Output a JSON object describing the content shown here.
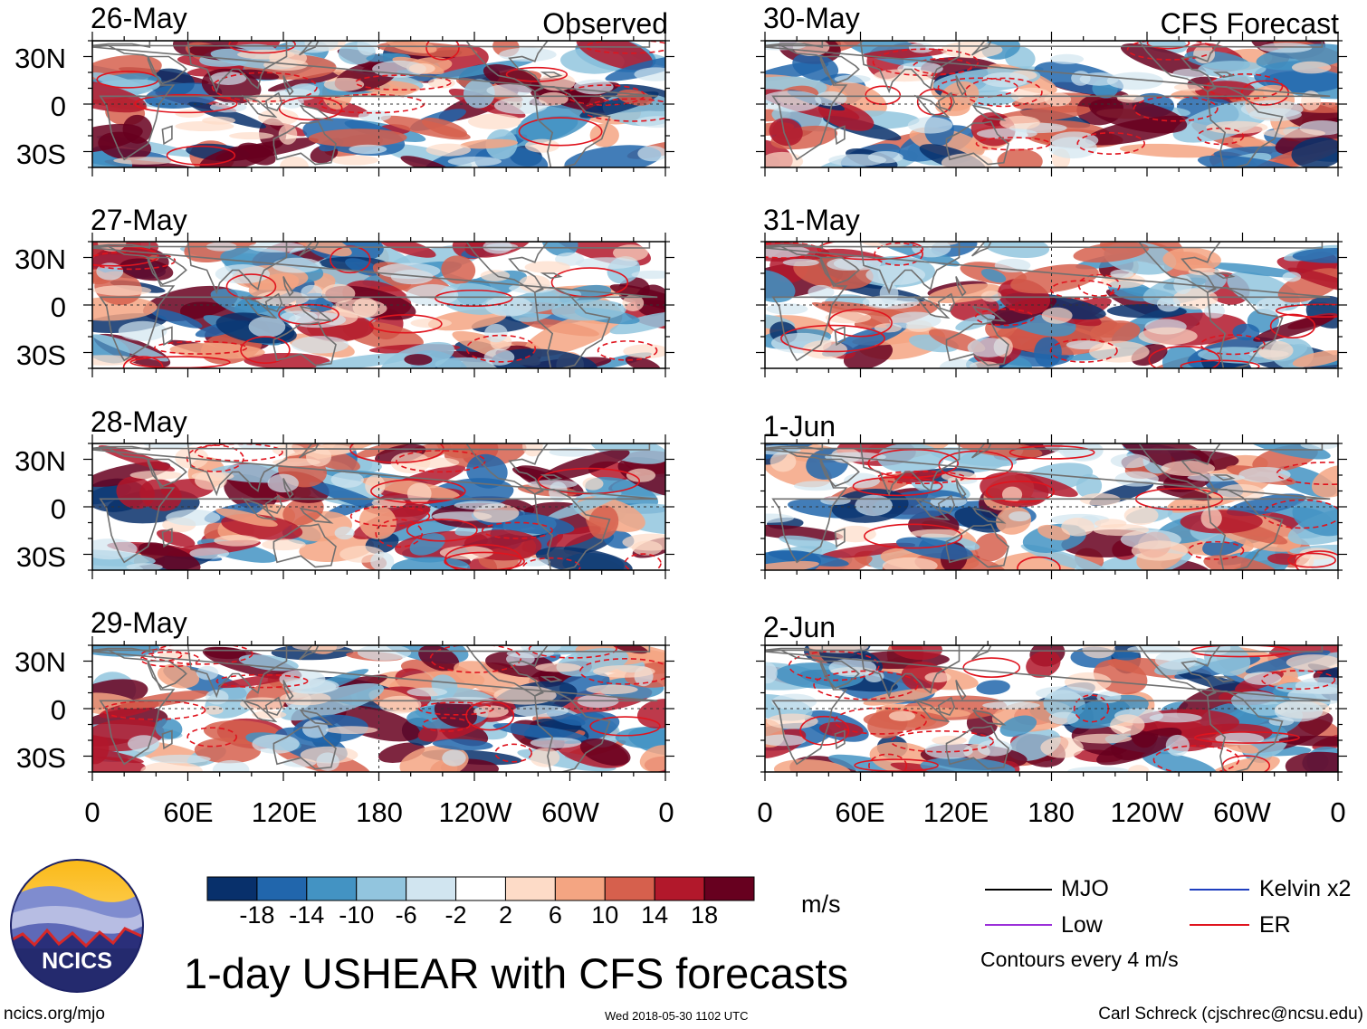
{
  "figure": {
    "title": "1-day USHEAR with CFS forecasts",
    "left_corner_label": "Observed",
    "right_corner_label": "CFS Forecast",
    "units": "m/s",
    "contour_note": "Contours every 4 m/s",
    "footer_left": "ncics.org/mjo",
    "footer_center": "Wed 2018-05-30 1102 UTC",
    "footer_right": "Carl Schreck (cjschrec@ncsu.edu)",
    "logo_text": "NCICS"
  },
  "chart_data": {
    "type": "heatmap",
    "variable": "1-day USHEAR anomaly",
    "units": "m/s",
    "lat_ticks": [
      "30N",
      "0",
      "30S"
    ],
    "lon_ticks": [
      "0",
      "60E",
      "120E",
      "180",
      "120W",
      "60W",
      "0"
    ],
    "lat_range": [
      -40,
      40
    ],
    "lon_range": [
      0,
      360
    ],
    "colorbar": {
      "levels": [
        "-18",
        "-14",
        "-10",
        "-6",
        "-2",
        "2",
        "6",
        "10",
        "14",
        "18"
      ],
      "colors": [
        "#08306b",
        "#2166ac",
        "#4393c3",
        "#92c5de",
        "#d1e5f0",
        "#ffffff",
        "#fddbc7",
        "#f4a582",
        "#d6604d",
        "#b2182b",
        "#67001f"
      ]
    },
    "legend": [
      {
        "label": "MJO",
        "color": "#000000"
      },
      {
        "label": "Kelvin x2",
        "color": "#1f3fbf"
      },
      {
        "label": "Low",
        "color": "#9b30d9"
      },
      {
        "label": "ER",
        "color": "#e0141e"
      }
    ],
    "panels_observed": [
      {
        "date": "26-May"
      },
      {
        "date": "27-May"
      },
      {
        "date": "28-May"
      },
      {
        "date": "29-May"
      }
    ],
    "panels_forecast": [
      {
        "date": "30-May"
      },
      {
        "date": "31-May"
      },
      {
        "date": "1-Jun"
      },
      {
        "date": "2-Jun"
      }
    ]
  }
}
